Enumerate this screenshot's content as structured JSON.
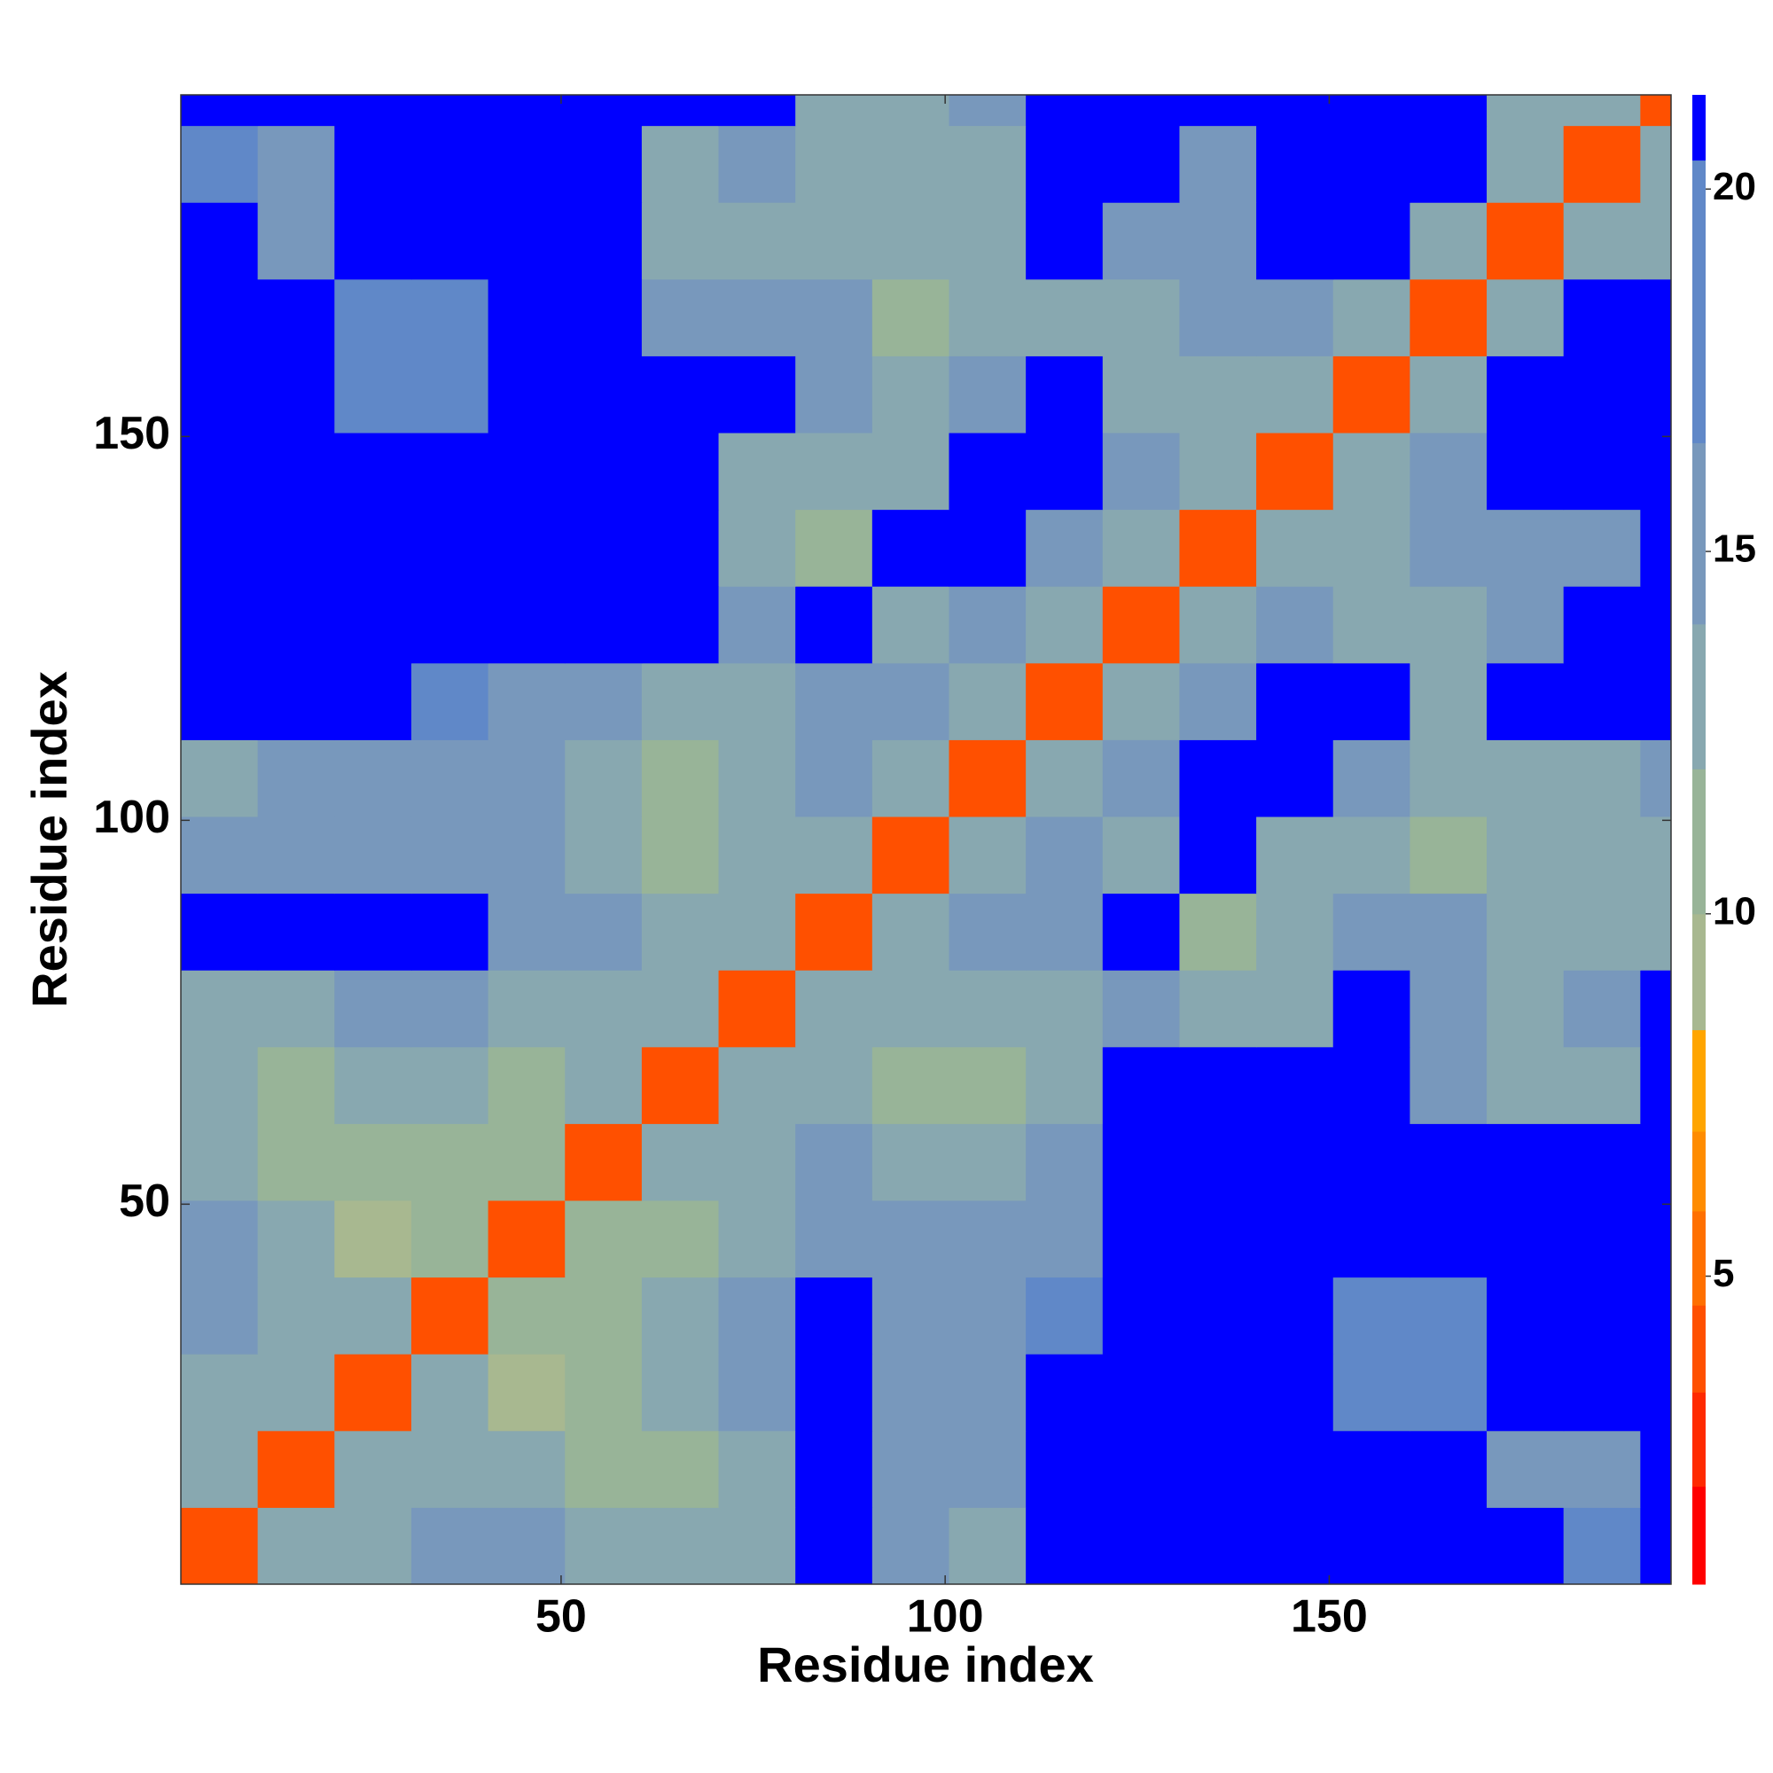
{
  "chart_data": {
    "type": "heatmap",
    "xlabel": "Residue index",
    "ylabel": "Residue index",
    "xlim": [
      0.5,
      194.5
    ],
    "ylim": [
      0.5,
      194.5
    ],
    "xticks": [
      50,
      100,
      150
    ],
    "yticks": [
      50,
      100,
      150
    ],
    "x_bins": [
      0.5,
      10.5,
      20.5,
      30.5,
      40.5,
      50.5,
      60.5,
      70.5,
      80.5,
      90.5,
      100.5,
      110.5,
      120.5,
      130.5,
      140.5,
      150.5,
      160.5,
      170.5,
      180.5,
      190.5,
      194.5
    ],
    "y_bins": [
      0.5,
      10.5,
      20.5,
      30.5,
      40.5,
      50.5,
      60.5,
      70.5,
      80.5,
      90.5,
      100.5,
      110.5,
      120.5,
      130.5,
      140.5,
      150.5,
      160.5,
      170.5,
      180.5,
      190.5,
      194.5
    ],
    "z": [
      [
        4,
        13,
        14,
        16,
        15,
        13,
        13,
        14,
        21,
        15,
        14,
        21,
        21,
        21,
        21,
        21,
        21,
        21,
        17,
        21
      ],
      [
        13,
        4,
        13,
        14,
        14,
        12,
        12,
        13,
        21,
        15,
        15,
        21,
        21,
        21,
        21,
        21,
        21,
        16,
        15,
        21
      ],
      [
        14,
        13,
        4,
        13,
        10,
        12,
        13,
        15,
        21,
        16,
        16,
        21,
        21,
        21,
        21,
        19,
        18,
        21,
        21,
        21
      ],
      [
        16,
        14,
        13,
        4,
        11,
        12,
        14,
        15,
        21,
        16,
        16,
        17,
        21,
        21,
        21,
        17,
        17,
        21,
        21,
        21
      ],
      [
        15,
        14,
        10,
        11,
        4,
        11,
        12,
        13,
        15,
        15,
        15,
        16,
        21,
        21,
        21,
        21,
        21,
        21,
        21,
        21
      ],
      [
        13,
        12,
        12,
        12,
        11,
        4,
        13,
        14,
        15,
        13,
        13,
        15,
        21,
        21,
        21,
        21,
        21,
        21,
        21,
        21
      ],
      [
        13,
        12,
        13,
        14,
        12,
        13,
        4,
        13,
        14,
        12,
        12,
        14,
        21,
        21,
        21,
        21,
        16,
        14,
        13,
        21
      ],
      [
        14,
        13,
        15,
        15,
        13,
        14,
        13,
        4,
        13,
        13,
        13,
        14,
        16,
        14,
        13,
        21,
        15,
        14,
        15,
        21
      ],
      [
        21,
        21,
        21,
        21,
        15,
        15,
        14,
        13,
        4,
        13,
        15,
        16,
        21,
        12,
        13,
        15,
        15,
        13,
        13,
        14
      ],
      [
        15,
        15,
        16,
        16,
        15,
        13,
        12,
        13,
        13,
        4,
        13,
        15,
        14,
        21,
        14,
        14,
        12,
        14,
        13,
        14
      ],
      [
        14,
        15,
        16,
        16,
        15,
        13,
        12,
        13,
        15,
        13,
        4,
        13,
        15,
        21,
        21,
        16,
        13,
        14,
        14,
        15
      ],
      [
        21,
        21,
        21,
        17,
        16,
        15,
        14,
        14,
        16,
        15,
        13,
        4,
        13,
        15,
        21,
        21,
        14,
        21,
        21,
        21
      ],
      [
        21,
        21,
        21,
        21,
        21,
        21,
        21,
        16,
        21,
        14,
        15,
        13,
        4,
        13,
        15,
        14,
        14,
        15,
        21,
        21
      ],
      [
        21,
        21,
        21,
        21,
        21,
        21,
        21,
        14,
        12,
        21,
        21,
        15,
        13,
        4,
        13,
        13,
        15,
        16,
        16,
        21
      ],
      [
        21,
        21,
        21,
        21,
        21,
        21,
        21,
        13,
        13,
        14,
        21,
        21,
        15,
        13,
        4,
        13,
        15,
        21,
        21,
        21
      ],
      [
        21,
        21,
        19,
        17,
        21,
        21,
        21,
        21,
        15,
        14,
        16,
        21,
        14,
        13,
        13,
        4,
        13,
        21,
        21,
        21
      ],
      [
        21,
        21,
        18,
        17,
        21,
        21,
        16,
        15,
        15,
        12,
        13,
        14,
        14,
        15,
        15,
        13,
        4,
        13,
        21,
        21
      ],
      [
        21,
        16,
        21,
        21,
        21,
        21,
        14,
        14,
        13,
        14,
        14,
        21,
        15,
        16,
        21,
        21,
        13,
        4,
        13,
        14
      ],
      [
        17,
        15,
        21,
        21,
        21,
        21,
        13,
        15,
        13,
        13,
        14,
        21,
        21,
        16,
        21,
        21,
        21,
        13,
        4,
        13
      ],
      [
        21,
        21,
        21,
        21,
        21,
        21,
        21,
        21,
        14,
        14,
        15,
        21,
        21,
        21,
        21,
        21,
        21,
        14,
        13,
        4
      ]
    ],
    "clim": [
      0.75,
      21.3
    ],
    "cticks": [
      5,
      10,
      15,
      20
    ],
    "colorscale": [
      {
        "max": 2.1,
        "color": "#ff0000"
      },
      {
        "max": 3.4,
        "color": "#ff2a00"
      },
      {
        "max": 4.6,
        "color": "#ff5000"
      },
      {
        "max": 5.9,
        "color": "#ff7000"
      },
      {
        "max": 7.0,
        "color": "#ff8c00"
      },
      {
        "max": 8.4,
        "color": "#ffa500"
      },
      {
        "max": 10,
        "color": "#a8b890"
      },
      {
        "max": 12,
        "color": "#98b498"
      },
      {
        "max": 14,
        "color": "#88a8b0"
      },
      {
        "max": 16.5,
        "color": "#7898bc"
      },
      {
        "max": 20.4,
        "color": "#6088c8"
      },
      {
        "max": 21.3,
        "color": "#0000ff"
      }
    ]
  }
}
